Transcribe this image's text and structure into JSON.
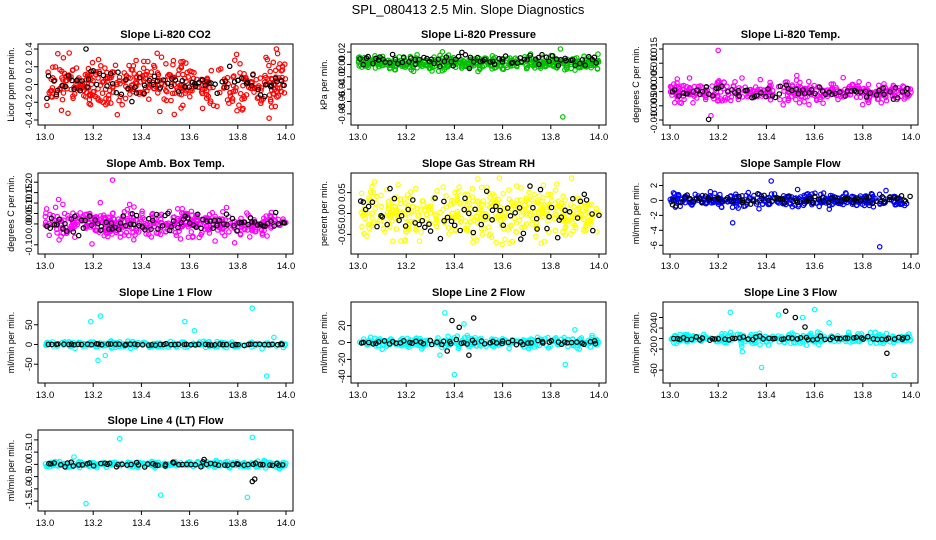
{
  "figure_title": "SPL_080413  2.5 Min. Slope Diagnostics",
  "colors": {
    "co2": "#ff0000",
    "pressure": "#00c000",
    "temperature": "#ff00ff",
    "gas_rh": "#ffff00",
    "flow": "#0000ff",
    "line_flow": "#00ffff",
    "overlay": "#000000"
  },
  "chart_data": [
    {
      "type": "scatter",
      "title": "Slope Li-820 CO2",
      "ylabel": "Licor ppm per min.",
      "xlabel": "",
      "xlim": [
        13.0,
        14.0
      ],
      "xticks": [
        "13.0",
        "13.2",
        "13.4",
        "13.6",
        "13.8",
        "14.0"
      ],
      "ylim": [
        -0.4,
        0.4
      ],
      "yticks": [
        "-0.4",
        "-0.2",
        "0.0",
        "0.2",
        "0.4"
      ],
      "series": [
        {
          "name": "all",
          "color": "#ff0000",
          "center": 0.0,
          "spread": 0.13,
          "n": 420,
          "outliers": [
            [
              13.93,
              -0.38
            ],
            [
              13.3,
              -0.34
            ],
            [
              13.96,
              0.42
            ]
          ]
        },
        {
          "name": "selected",
          "color": "#000000",
          "center": 0.0,
          "spread": 0.09,
          "n": 80,
          "outliers": [
            [
              13.17,
              0.45
            ]
          ]
        }
      ]
    },
    {
      "type": "scatter",
      "title": "Slope Li-820 Pressure",
      "ylabel": "kPa per min.",
      "xlabel": "",
      "xlim": [
        13.0,
        14.0
      ],
      "xticks": [
        "13.0",
        "13.2",
        "13.4",
        "13.6",
        "13.8",
        "14.0"
      ],
      "ylim": [
        -0.09,
        0.025
      ],
      "yticks": [
        "-0.08",
        "-0.06",
        "-0.04",
        "-0.02",
        "0.00",
        "0.02"
      ],
      "series": [
        {
          "name": "all",
          "color": "#00c000",
          "center": 0.002,
          "spread": 0.005,
          "n": 420,
          "outliers": [
            [
              13.85,
              -0.085
            ],
            [
              13.84,
              0.025
            ]
          ]
        },
        {
          "name": "selected",
          "color": "#000000",
          "center": 0.008,
          "spread": 0.005,
          "n": 80,
          "outliers": []
        }
      ]
    },
    {
      "type": "scatter",
      "title": "Slope Li-820 Temp.",
      "ylabel": "degrees C per min.",
      "xlabel": "",
      "xlim": [
        13.0,
        14.0
      ],
      "xticks": [
        "13.0",
        "13.2",
        "13.4",
        "13.6",
        "13.8",
        "14.0"
      ],
      "ylim": [
        -0.01,
        0.015
      ],
      "yticks": [
        "-0.010",
        "-0.005",
        "0.000",
        "0.005",
        "0.010",
        "0.015"
      ],
      "series": [
        {
          "name": "all",
          "color": "#ff00ff",
          "center": 0.0,
          "spread": 0.0018,
          "n": 360,
          "outliers": [
            [
              13.2,
              0.0145
            ],
            [
              13.17,
              -0.0085
            ]
          ]
        },
        {
          "name": "selected",
          "color": "#000000",
          "center": 0.0,
          "spread": 0.0012,
          "n": 70,
          "outliers": [
            [
              13.16,
              -0.0098
            ]
          ]
        }
      ]
    },
    {
      "type": "scatter",
      "title": "Slope Amb. Box Temp.",
      "ylabel": "degrees C per min.",
      "xlabel": "",
      "xlim": [
        13.0,
        14.0
      ],
      "xticks": [
        "13.0",
        "13.2",
        "13.4",
        "13.6",
        "13.8",
        "14.0"
      ],
      "ylim": [
        -0.12,
        0.22
      ],
      "yticks": [
        "-0.10",
        "0.00",
        "0.05",
        "0.10",
        "0.15",
        "0.20"
      ],
      "series": [
        {
          "name": "all",
          "color": "#ff00ff",
          "center": 0.0,
          "spread": 0.035,
          "n": 430,
          "outliers": [
            [
              13.28,
              0.21
            ]
          ]
        },
        {
          "name": "selected",
          "color": "#000000",
          "center": 0.0,
          "spread": 0.025,
          "n": 90,
          "outliers": []
        }
      ]
    },
    {
      "type": "scatter",
      "title": "Slope Gas Stream RH",
      "ylabel": "percent per min.",
      "xlabel": "",
      "xlim": [
        13.0,
        14.0
      ],
      "xticks": [
        "13.0",
        "13.2",
        "13.4",
        "13.6",
        "13.8",
        "14.0"
      ],
      "ylim": [
        -0.085,
        0.085
      ],
      "yticks": [
        "-0.05",
        "0.00",
        "0.05"
      ],
      "series": [
        {
          "name": "all",
          "color": "#ffff00",
          "center": 0.0,
          "spread": 0.03,
          "n": 420,
          "outliers": []
        },
        {
          "name": "selected",
          "color": "#000000",
          "center": 0.0,
          "spread": 0.025,
          "n": 70,
          "outliers": []
        }
      ]
    },
    {
      "type": "scatter",
      "title": "Slope Sample Flow",
      "ylabel": "ml/min per min.",
      "xlabel": "",
      "xlim": [
        13.0,
        14.0
      ],
      "xticks": [
        "13.0",
        "13.2",
        "13.4",
        "13.6",
        "13.8",
        "14.0"
      ],
      "ylim": [
        -6.5,
        3.0
      ],
      "yticks": [
        "-6",
        "-4",
        "-2",
        "0",
        "2"
      ],
      "series": [
        {
          "name": "all",
          "color": "#0000ff",
          "center": 0.0,
          "spread": 0.45,
          "n": 320,
          "outliers": [
            [
              13.87,
              -6.2
            ],
            [
              13.26,
              -3.0
            ],
            [
              13.42,
              2.6
            ]
          ]
        },
        {
          "name": "selected",
          "color": "#000000",
          "center": 0.1,
          "spread": 0.35,
          "n": 80,
          "outliers": []
        }
      ]
    },
    {
      "type": "scatter",
      "title": "Slope Line 1 Flow",
      "ylabel": "ml/min per min.",
      "xlabel": "",
      "xlim": [
        13.0,
        14.0
      ],
      "xticks": [
        "13.0",
        "13.2",
        "13.4",
        "13.6",
        "13.8",
        "14.0"
      ],
      "ylim": [
        -85,
        95
      ],
      "yticks": [
        "-50",
        "0",
        "50"
      ],
      "series": [
        {
          "name": "all",
          "color": "#00ffff",
          "center": 0.0,
          "spread": 4,
          "n": 260,
          "outliers": [
            [
              13.19,
              58
            ],
            [
              13.23,
              72
            ],
            [
              13.22,
              -40
            ],
            [
              13.25,
              -28
            ],
            [
              13.58,
              58
            ],
            [
              13.62,
              35
            ],
            [
              13.86,
              92
            ],
            [
              13.92,
              -80
            ],
            [
              13.95,
              18
            ]
          ]
        },
        {
          "name": "selected",
          "color": "#000000",
          "center": 0.0,
          "spread": 1,
          "n": 60,
          "outliers": []
        }
      ]
    },
    {
      "type": "scatter",
      "title": "Slope Line 2 Flow",
      "ylabel": "ml/min per min.",
      "xlabel": "",
      "xlim": [
        13.0,
        14.0
      ],
      "xticks": [
        "13.0",
        "13.2",
        "13.4",
        "13.6",
        "13.8",
        "14.0"
      ],
      "ylim": [
        -42,
        42
      ],
      "yticks": [
        "-40",
        "-20",
        "0",
        "20"
      ],
      "series": [
        {
          "name": "all",
          "color": "#00ffff",
          "center": 0.0,
          "spread": 3,
          "n": 280,
          "outliers": [
            [
              13.36,
              35
            ],
            [
              13.4,
              -38
            ],
            [
              13.44,
              22
            ],
            [
              13.34,
              -15
            ],
            [
              13.86,
              -26
            ],
            [
              13.9,
              15
            ]
          ]
        },
        {
          "name": "selected",
          "color": "#000000",
          "center": 0.0,
          "spread": 1.5,
          "n": 60,
          "outliers": [
            [
              13.39,
              26
            ],
            [
              13.42,
              18
            ],
            [
              13.48,
              29
            ],
            [
              13.37,
              -10
            ],
            [
              13.46,
              -15
            ]
          ]
        }
      ]
    },
    {
      "type": "scatter",
      "title": "Slope Line 3 Flow",
      "ylabel": "ml/min per min.",
      "xlabel": "",
      "xlim": [
        13.0,
        14.0
      ],
      "xticks": [
        "13.0",
        "13.2",
        "13.4",
        "13.6",
        "13.8",
        "14.0"
      ],
      "ylim": [
        -75,
        60
      ],
      "yticks": [
        "-60",
        "-20",
        "0",
        "20",
        "40"
      ],
      "series": [
        {
          "name": "all",
          "color": "#00ffff",
          "center": 0.0,
          "spread": 5,
          "n": 280,
          "outliers": [
            [
              13.25,
              50
            ],
            [
              13.3,
              -25
            ],
            [
              13.38,
              -55
            ],
            [
              13.45,
              45
            ],
            [
              13.55,
              40
            ],
            [
              13.6,
              55
            ],
            [
              13.66,
              30
            ],
            [
              13.93,
              -70
            ]
          ]
        },
        {
          "name": "selected",
          "color": "#000000",
          "center": 0.0,
          "spread": 2,
          "n": 60,
          "outliers": [
            [
              13.48,
              52
            ],
            [
              13.52,
              40
            ],
            [
              13.56,
              22
            ],
            [
              13.9,
              -28
            ]
          ]
        }
      ]
    },
    {
      "type": "scatter",
      "title": "Slope Line 4 (LT) Flow",
      "ylabel": "ml/min per min.",
      "xlabel": "",
      "xlim": [
        13.0,
        14.0
      ],
      "xticks": [
        "13.0",
        "13.2",
        "13.4",
        "13.6",
        "13.8",
        "14.0"
      ],
      "ylim": [
        -1.7,
        1.2
      ],
      "yticks": [
        "-1.5",
        "-1.0",
        "-0.5",
        "0.0",
        "0.5",
        "1.0"
      ],
      "series": [
        {
          "name": "all",
          "color": "#00ffff",
          "center": 0.0,
          "spread": 0.06,
          "n": 300,
          "outliers": [
            [
              13.31,
              1.05
            ],
            [
              13.48,
              -1.25
            ],
            [
              13.84,
              -1.35
            ],
            [
              13.17,
              -1.6
            ],
            [
              13.86,
              1.1
            ],
            [
              13.12,
              0.3
            ]
          ]
        },
        {
          "name": "selected",
          "color": "#000000",
          "center": 0.0,
          "spread": 0.05,
          "n": 60,
          "outliers": [
            [
              13.87,
              -0.6
            ],
            [
              13.66,
              0.2
            ],
            [
              13.86,
              -0.7
            ]
          ]
        }
      ]
    }
  ]
}
